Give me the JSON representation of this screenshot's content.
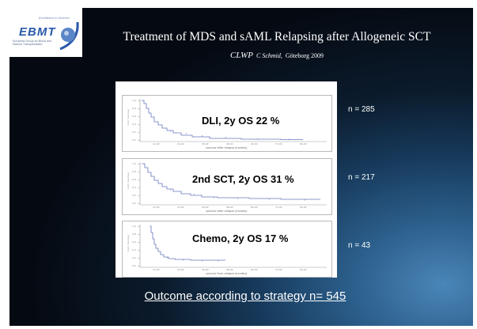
{
  "logo": {
    "name": "EBMT",
    "tagline": "Excellence in Science",
    "subtitle": "European Group for Blood and Marrow Transplantation"
  },
  "header": {
    "title": "Treatment of MDS and sAML Relapsing after  Allogeneic SCT",
    "subtitle_main": "CLWP",
    "subtitle_author": "C Schmid,",
    "subtitle_place": " Göteborg 2009"
  },
  "panels": [
    {
      "label": "DLI, 2y OS 22 %",
      "n": "n = 285",
      "xlabel": "survival after relapse (months)",
      "ylabel": "Cum. Survival"
    },
    {
      "label": "2nd SCT, 2y OS 31 %",
      "n": "n = 217",
      "xlabel": "survival after relapse (months)",
      "ylabel": "Cum. Survival"
    },
    {
      "label": "Chemo, 2y OS 17 %",
      "n": "n = 43",
      "xlabel": "survival from relapse (months)",
      "ylabel": "Cum. Survival"
    }
  ],
  "footer": {
    "text": "Outcome according to strategy n= 545"
  },
  "colors": {
    "curve": "#6677bb"
  }
}
